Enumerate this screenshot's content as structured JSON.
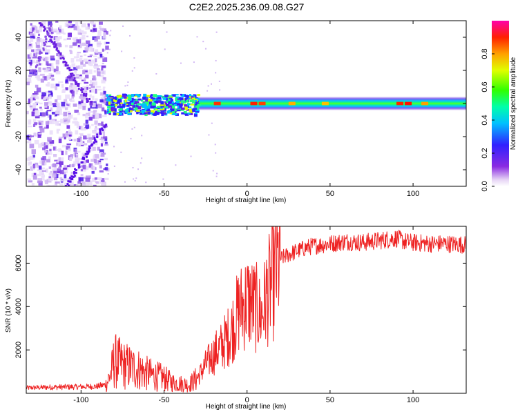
{
  "title": "C2E2.2025.236.09.08.G27",
  "chart_data": [
    {
      "type": "heatmap",
      "xlabel": "Height of straight line (km)",
      "ylabel": "Frequency (Hz)",
      "xlim": [
        -133,
        132
      ],
      "ylim": [
        -50,
        50
      ],
      "xticks": [
        -100,
        -50,
        0,
        50,
        100
      ],
      "xtick_labels": [
        "-100",
        "-50",
        "0",
        "50",
        "100"
      ],
      "yticks": [
        -40,
        -20,
        0,
        20,
        40
      ],
      "ytick_labels": [
        "-40",
        "-20",
        "0",
        "20",
        "40"
      ],
      "description_regions": [
        {
          "x_range": [
            -133,
            -85
          ],
          "freq_range": [
            -50,
            50
          ],
          "level": "scattered 0.1-0.2 with diagonal streaks"
        },
        {
          "x_range": [
            -85,
            -30
          ],
          "freq_range": [
            -8,
            6
          ],
          "level": "patchy 0.3-0.6 centered near 0 Hz"
        },
        {
          "x_range": [
            -30,
            132
          ],
          "freq_range": [
            -4,
            4
          ],
          "level": "continuous 0.4-0.9 band centered at 0 Hz"
        }
      ],
      "colorbar": {
        "label": "Normalized spectral amplitude",
        "range": [
          0,
          1
        ],
        "ticks": [
          0.0,
          0.2,
          0.4,
          0.6,
          0.8
        ],
        "tick_labels": [
          "0.0",
          "0.2",
          "0.4",
          "0.6",
          "0.8"
        ]
      }
    },
    {
      "type": "line",
      "xlabel": "Height of straight line (km)",
      "ylabel": "SNR (10 * v/v)",
      "xlim": [
        -133,
        132
      ],
      "ylim": [
        0,
        7700
      ],
      "xticks": [
        -100,
        -50,
        0,
        50,
        100
      ],
      "xtick_labels": [
        "-100",
        "-50",
        "0",
        "50",
        "100"
      ],
      "yticks": [
        2000,
        4000,
        6000
      ],
      "ytick_labels": [
        "2000",
        "4000",
        "6000"
      ],
      "color": "#ee2222",
      "x": [
        -133,
        -120,
        -100,
        -90,
        -85,
        -82,
        -80,
        -75,
        -70,
        -65,
        -60,
        -55,
        -50,
        -45,
        -40,
        -35,
        -30,
        -25,
        -20,
        -15,
        -10,
        -5,
        0,
        5,
        8,
        10,
        12,
        15,
        18,
        20,
        25,
        30,
        35,
        40,
        50,
        60,
        70,
        80,
        90,
        95,
        100,
        110,
        120,
        132
      ],
      "y": [
        250,
        280,
        300,
        320,
        400,
        900,
        1500,
        1300,
        1200,
        1100,
        900,
        800,
        700,
        500,
        450,
        400,
        700,
        1300,
        1800,
        2200,
        2800,
        3800,
        4300,
        4000,
        3600,
        3900,
        4600,
        5000,
        5800,
        6200,
        6400,
        6550,
        6700,
        6800,
        6900,
        7000,
        6950,
        7050,
        7150,
        7000,
        6950,
        6900,
        6900,
        6850
      ]
    }
  ]
}
